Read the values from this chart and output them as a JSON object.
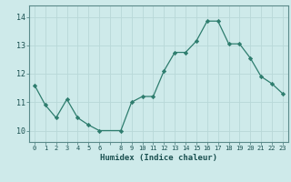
{
  "x": [
    0,
    1,
    2,
    3,
    4,
    5,
    6,
    8,
    9,
    10,
    11,
    12,
    13,
    14,
    15,
    16,
    17,
    18,
    19,
    20,
    21,
    22,
    23
  ],
  "y": [
    11.6,
    10.9,
    10.45,
    11.1,
    10.45,
    10.2,
    10.0,
    10.0,
    11.0,
    11.2,
    11.2,
    12.1,
    12.75,
    12.75,
    13.15,
    13.85,
    13.85,
    13.05,
    13.05,
    12.55,
    11.9,
    11.65,
    11.3
  ],
  "xlabel": "Humidex (Indice chaleur)",
  "yticks": [
    10,
    11,
    12,
    13,
    14
  ],
  "xtick_labels": [
    "0",
    "1",
    "2",
    "3",
    "4",
    "5",
    "6",
    "",
    "8",
    "9",
    "10",
    "11",
    "12",
    "13",
    "14",
    "15",
    "16",
    "17",
    "18",
    "19",
    "20",
    "21",
    "22",
    "23"
  ],
  "line_color": "#2e7d6e",
  "marker_color": "#2e7d6e",
  "bg_color": "#ceeaea",
  "grid_color": "#b8d8d8",
  "spine_color": "#5a8a8a",
  "tick_color": "#1a5050",
  "ylim": [
    9.6,
    14.4
  ],
  "xlim": [
    -0.5,
    23.5
  ]
}
